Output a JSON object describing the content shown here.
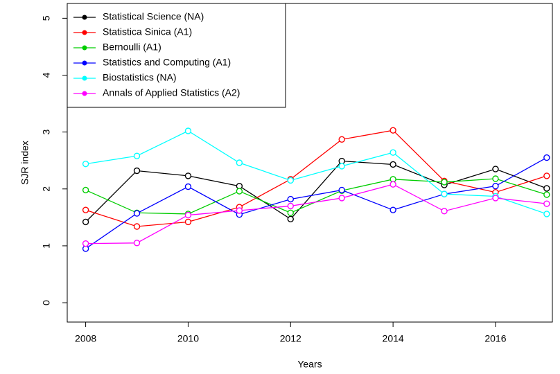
{
  "chart_data": {
    "type": "line",
    "x_label": "Years",
    "y_label": "SJR index",
    "x": [
      2008,
      2009,
      2010,
      2011,
      2012,
      2013,
      2014,
      2015,
      2016,
      2017
    ],
    "series": [
      {
        "name": "Statistical Science (NA)",
        "color": "#000000",
        "values": [
          1.42,
          2.32,
          2.23,
          2.05,
          1.47,
          2.49,
          2.43,
          2.07,
          2.35,
          2.01
        ]
      },
      {
        "name": "Statistica Sinica (A1)",
        "color": "#ff0000",
        "values": [
          1.63,
          1.34,
          1.42,
          1.68,
          2.17,
          2.87,
          3.03,
          2.14,
          1.94,
          2.23
        ]
      },
      {
        "name": "Bernoulli (A1)",
        "color": "#00cd00",
        "values": [
          1.98,
          1.58,
          1.56,
          1.96,
          1.58,
          1.97,
          2.17,
          2.12,
          2.18,
          1.9
        ]
      },
      {
        "name": "Statistics and Computing (A1)",
        "color": "#0000ff",
        "values": [
          0.95,
          1.57,
          2.04,
          1.55,
          1.82,
          1.98,
          1.63,
          1.91,
          2.05,
          2.55
        ]
      },
      {
        "name": "Biostatistics (NA)",
        "color": "#00ffff",
        "values": [
          2.44,
          2.58,
          3.02,
          2.46,
          2.15,
          2.4,
          2.64,
          1.91,
          1.87,
          1.56
        ]
      },
      {
        "name": "Annals of Applied Statistics (A2)",
        "color": "#ff00ff",
        "values": [
          1.04,
          1.05,
          1.54,
          1.62,
          1.7,
          1.84,
          2.08,
          1.61,
          1.84,
          1.74
        ]
      }
    ],
    "xlim": [
      2007.64,
      2017.11
    ],
    "xticks": [
      2008,
      2010,
      2012,
      2014,
      2016
    ],
    "ylim": [
      -0.34,
      5.26
    ],
    "yticks": [
      0,
      1,
      2,
      3,
      4,
      5
    ],
    "legend": "topleft",
    "grid": false
  }
}
